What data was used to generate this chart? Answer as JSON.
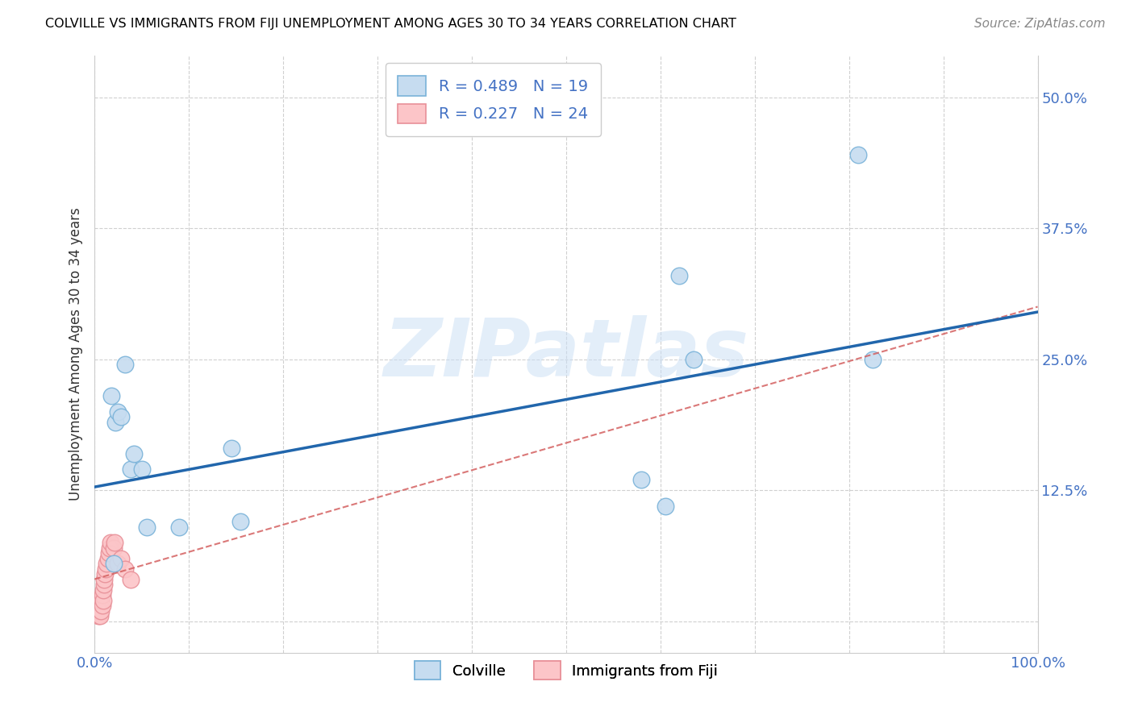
{
  "title": "COLVILLE VS IMMIGRANTS FROM FIJI UNEMPLOYMENT AMONG AGES 30 TO 34 YEARS CORRELATION CHART",
  "source": "Source: ZipAtlas.com",
  "ylabel": "Unemployment Among Ages 30 to 34 years",
  "xlim": [
    0,
    1.0
  ],
  "ylim": [
    -0.03,
    0.54
  ],
  "xticks": [
    0.0,
    0.1,
    0.2,
    0.3,
    0.4,
    0.5,
    0.6,
    0.7,
    0.8,
    0.9,
    1.0
  ],
  "xticklabels": [
    "0.0%",
    "",
    "",
    "",
    "",
    "",
    "",
    "",
    "",
    "",
    "100.0%"
  ],
  "yticks": [
    0.0,
    0.125,
    0.25,
    0.375,
    0.5
  ],
  "yticklabels": [
    "",
    "12.5%",
    "25.0%",
    "37.5%",
    "50.0%"
  ],
  "colville_fill_color": "#c6dcf0",
  "colville_edge_color": "#7ab3d9",
  "fiji_fill_color": "#fcc5c8",
  "fiji_edge_color": "#e89098",
  "colville_trend_color": "#2166ac",
  "fiji_trend_color": "#d46060",
  "colville_points_x": [
    0.018,
    0.022,
    0.025,
    0.028,
    0.032,
    0.038,
    0.042,
    0.05,
    0.055,
    0.09,
    0.145,
    0.155,
    0.58,
    0.605,
    0.62,
    0.635,
    0.81,
    0.825,
    0.02
  ],
  "colville_points_y": [
    0.215,
    0.19,
    0.2,
    0.195,
    0.245,
    0.145,
    0.16,
    0.145,
    0.09,
    0.09,
    0.165,
    0.095,
    0.135,
    0.11,
    0.33,
    0.25,
    0.445,
    0.25,
    0.055
  ],
  "fiji_points_x": [
    0.004,
    0.005,
    0.006,
    0.007,
    0.007,
    0.008,
    0.008,
    0.009,
    0.009,
    0.01,
    0.01,
    0.011,
    0.012,
    0.013,
    0.014,
    0.015,
    0.016,
    0.017,
    0.02,
    0.021,
    0.025,
    0.028,
    0.032,
    0.038
  ],
  "fiji_points_y": [
    0.005,
    0.01,
    0.005,
    0.01,
    0.02,
    0.015,
    0.025,
    0.02,
    0.03,
    0.035,
    0.04,
    0.045,
    0.05,
    0.055,
    0.06,
    0.065,
    0.07,
    0.075,
    0.07,
    0.075,
    0.055,
    0.06,
    0.05,
    0.04
  ],
  "colville_trend_x": [
    0.0,
    1.0
  ],
  "colville_trend_y": [
    0.128,
    0.295
  ],
  "fiji_trend_x": [
    0.0,
    1.0
  ],
  "fiji_trend_y": [
    0.04,
    0.3
  ],
  "watermark_text": "ZIPatlas",
  "background_color": "#ffffff",
  "grid_color": "#d0d0d0",
  "axis_label_color": "#4472c4",
  "ylabel_color": "#333333"
}
